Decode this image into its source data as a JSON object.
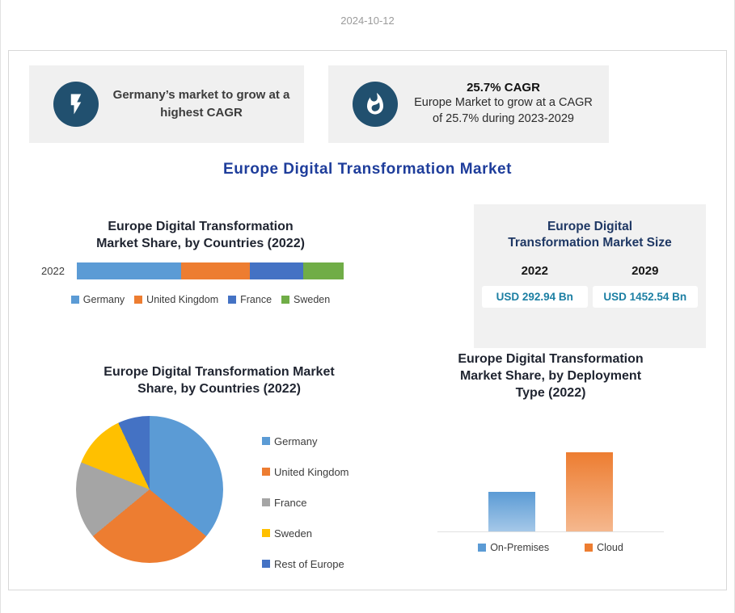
{
  "page": {
    "date": "2024-10-12"
  },
  "callouts": [
    {
      "icon": "lightning-icon",
      "text": "Germany’s market to grow at a highest CAGR"
    },
    {
      "icon": "flame-icon",
      "headline": "25.7% CAGR",
      "text": "Europe Market to grow at a CAGR of 25.7% during 2023-2029"
    }
  ],
  "main_title": "Europe Digital Transformation Market",
  "colors": {
    "callout_circle": "#21506F",
    "main_title_blue": "#1E3D9B",
    "panel_title_navy": "#1F3864",
    "value_teal": "#1C7FA3",
    "panel_gray": "#F1F1F1"
  },
  "chart_data": [
    {
      "type": "bar",
      "variant": "horizontal-stacked",
      "title": "Europe Digital Transformation Market Share, by Countries (2022)",
      "categories": [
        "2022"
      ],
      "series": [
        {
          "name": "Germany",
          "values": [
            39
          ],
          "color": "#5B9BD5"
        },
        {
          "name": "United Kingdom",
          "values": [
            26
          ],
          "color": "#ED7D31"
        },
        {
          "name": "France",
          "values": [
            20
          ],
          "color": "#4472C4"
        },
        {
          "name": "Sweden",
          "values": [
            15
          ],
          "color": "#70AD47"
        }
      ],
      "unit": "percent share (estimated from segment widths)",
      "legend_position": "bottom"
    },
    {
      "type": "table",
      "title": "Europe Digital Transformation Market Size",
      "columns": [
        "2022",
        "2029"
      ],
      "values": [
        "USD 292.94 Bn",
        "USD 1452.54 Bn"
      ]
    },
    {
      "type": "pie",
      "title": "Europe Digital Transformation Market Share, by Countries (2022)",
      "slices": [
        {
          "label": "Germany",
          "value": 36,
          "color": "#5B9BD5"
        },
        {
          "label": "United Kingdom",
          "value": 28,
          "color": "#ED7D31"
        },
        {
          "label": "France",
          "value": 17,
          "color": "#A5A5A5"
        },
        {
          "label": "Sweden",
          "value": 12,
          "color": "#FFC000"
        },
        {
          "label": "Rest of Europe",
          "value": 7,
          "color": "#4472C4"
        }
      ],
      "unit": "percent share (estimated from slice angles)",
      "start_angle_deg": 0,
      "legend_position": "right"
    },
    {
      "type": "bar",
      "title": "Europe Digital Transformation Market Share, by Deployment Type (2022)",
      "categories": [
        "On-Premises",
        "Cloud"
      ],
      "values": [
        33,
        67
      ],
      "colors": [
        "#5B9BD5",
        "#ED7D31"
      ],
      "unit": "percent share (estimated from bar heights)",
      "legend_position": "bottom"
    }
  ]
}
